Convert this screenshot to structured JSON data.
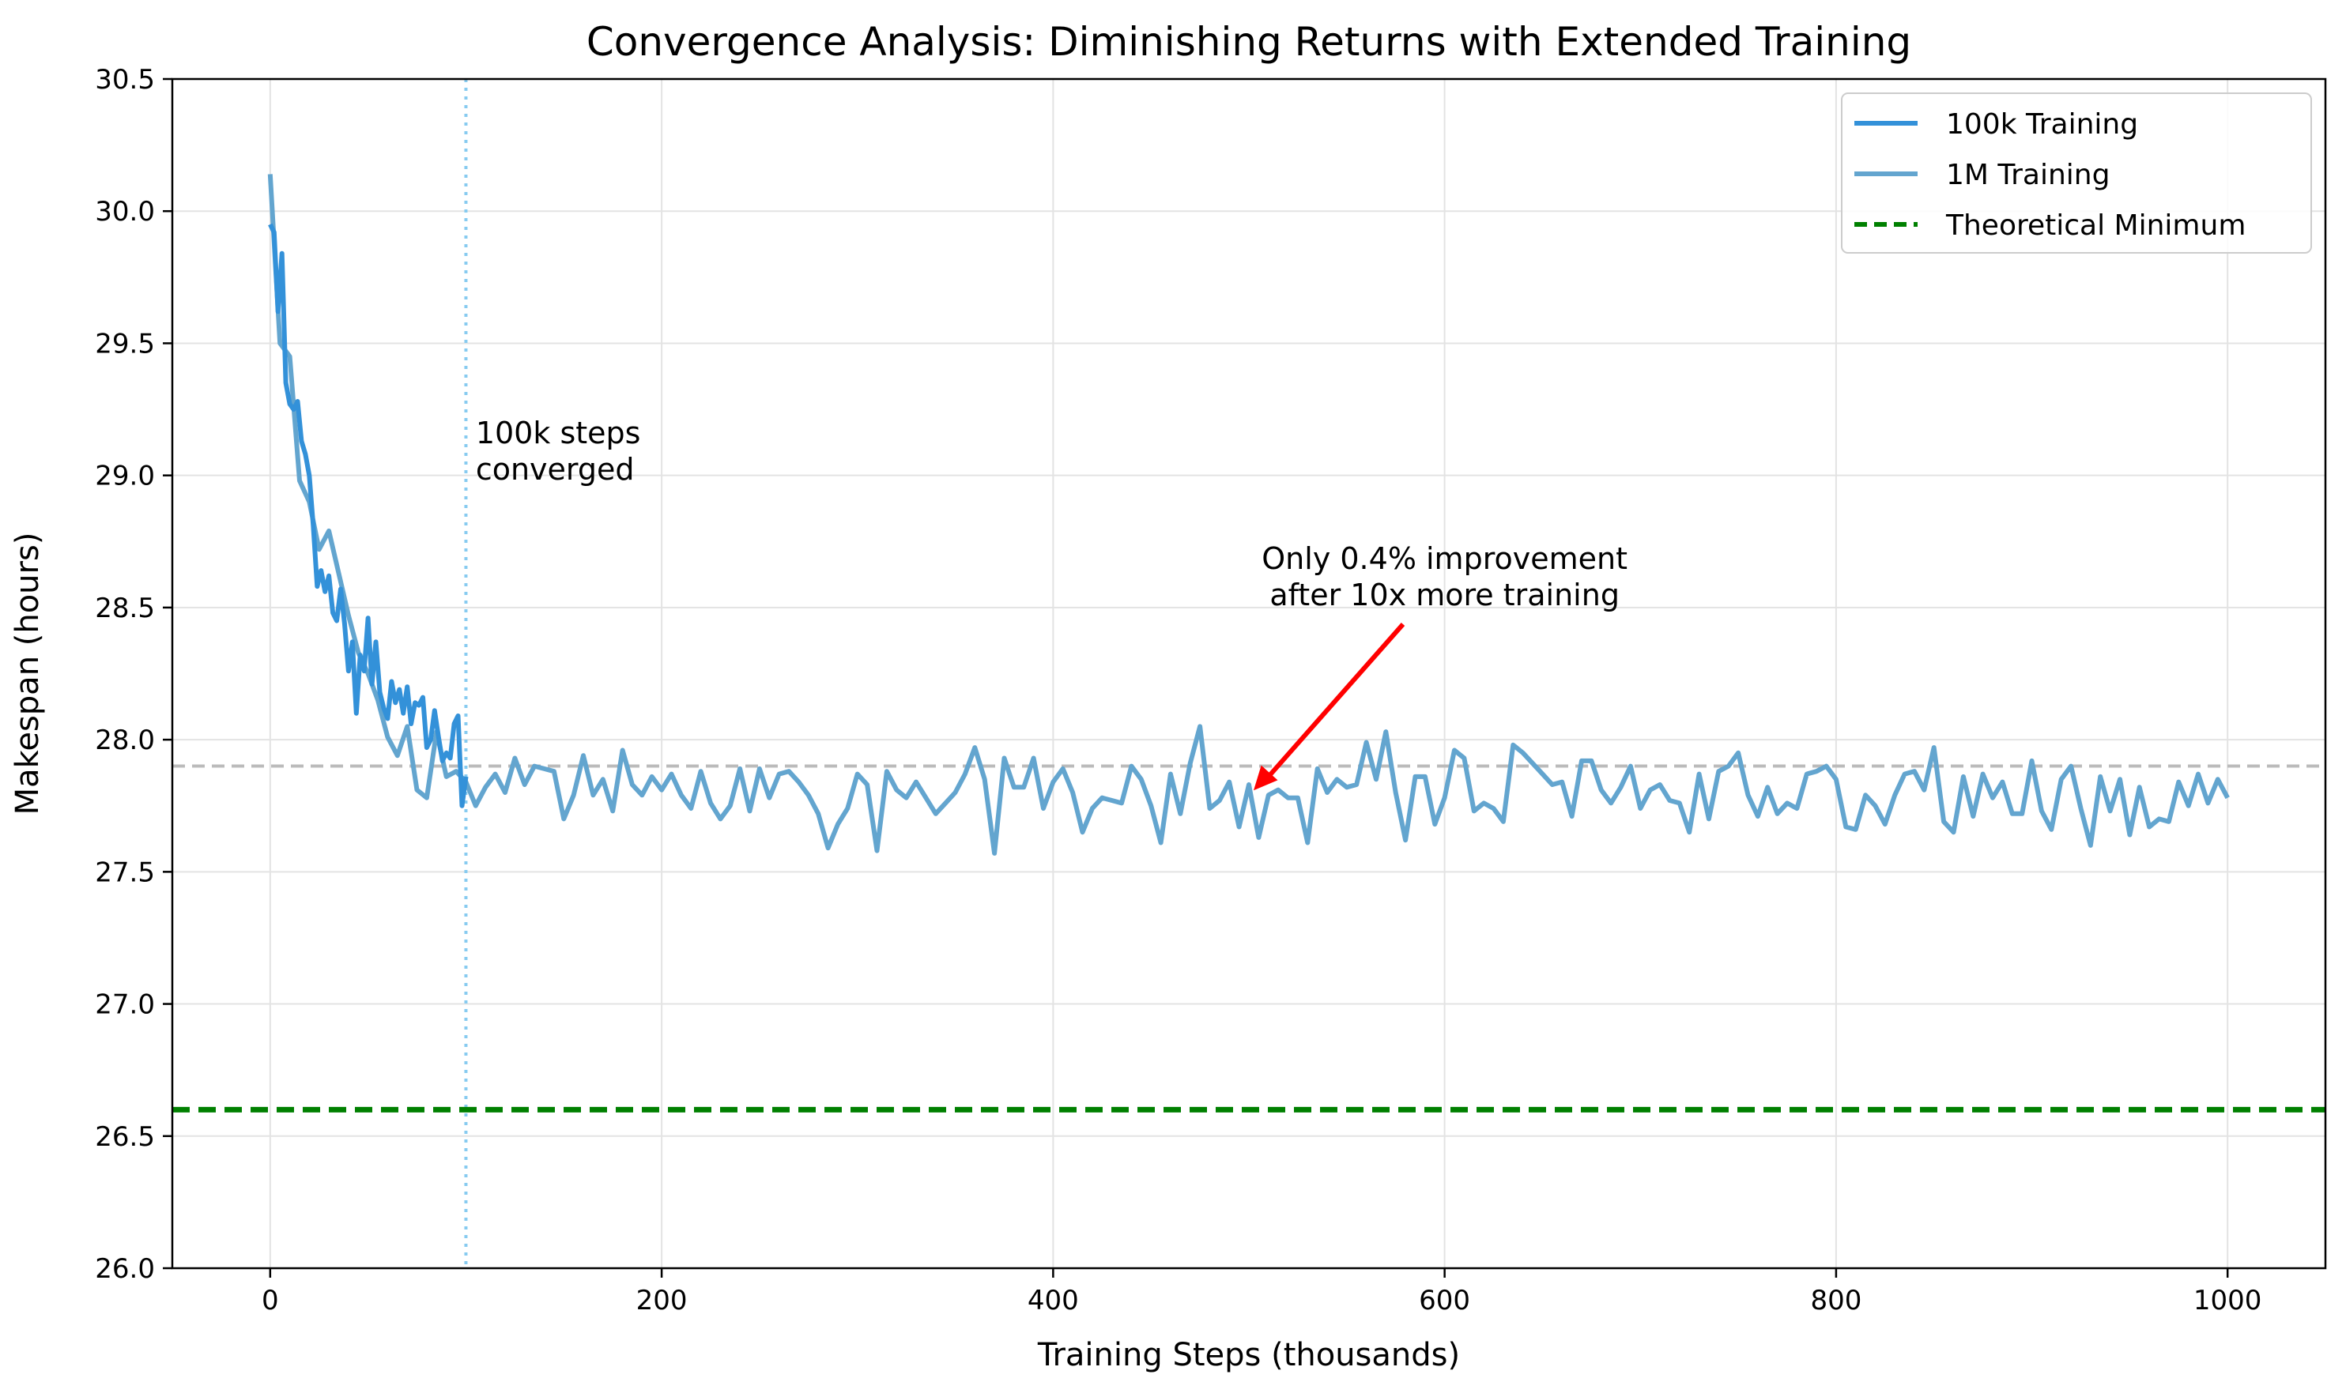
{
  "chart_data": {
    "type": "line",
    "title": "Convergence Analysis: Diminishing Returns with Extended Training",
    "xlabel": "Training Steps (thousands)",
    "ylabel": "Makespan (hours)",
    "xlim": [
      -50,
      1050
    ],
    "ylim": [
      26.0,
      30.5
    ],
    "xticks": [
      0,
      200,
      400,
      600,
      800,
      1000
    ],
    "xtick_labels": [
      "0",
      "200",
      "400",
      "600",
      "800",
      "1000"
    ],
    "yticks": [
      26.0,
      26.5,
      27.0,
      27.5,
      28.0,
      28.5,
      29.0,
      29.5,
      30.0,
      30.5
    ],
    "ytick_labels": [
      "26.0",
      "26.5",
      "27.0",
      "27.5",
      "28.0",
      "28.5",
      "29.0",
      "29.5",
      "30.0",
      "30.5"
    ],
    "grid": true,
    "legend_position": "top-right",
    "colors": {
      "series_100k": "#3391d9",
      "series_1m": "#63a5cf",
      "theoretical_min": "#008000",
      "reference": "#bbbbbb",
      "vline": "#87cbf0",
      "arrow": "#ff0000"
    },
    "series": [
      {
        "name": "100k Training",
        "x": [
          0,
          2,
          4,
          6,
          8,
          10,
          12,
          14,
          16,
          18,
          20,
          22,
          24,
          26,
          28,
          30,
          32,
          34,
          36,
          38,
          40,
          42,
          44,
          46,
          48,
          50,
          52,
          54,
          56,
          58,
          60,
          62,
          64,
          66,
          68,
          70,
          72,
          74,
          76,
          78,
          80,
          82,
          84,
          86,
          88,
          90,
          92,
          94,
          96,
          98,
          100
        ],
        "values": [
          29.95,
          29.92,
          29.62,
          29.84,
          29.35,
          29.27,
          29.25,
          29.28,
          29.13,
          29.08,
          29.0,
          28.81,
          28.58,
          28.64,
          28.56,
          28.62,
          28.48,
          28.45,
          28.57,
          28.44,
          28.26,
          28.37,
          28.1,
          28.32,
          28.26,
          28.46,
          28.21,
          28.37,
          28.18,
          28.12,
          28.08,
          28.22,
          28.14,
          28.19,
          28.1,
          28.2,
          28.06,
          28.14,
          28.13,
          28.16,
          27.97,
          28.0,
          28.11,
          28.01,
          27.92,
          27.95,
          27.93,
          28.06,
          28.09,
          27.75,
          27.86
        ]
      },
      {
        "name": "1M Training",
        "x": [
          0,
          5,
          10,
          15,
          20,
          25,
          30,
          35,
          40,
          45,
          50,
          55,
          60,
          65,
          70,
          75,
          80,
          85,
          90,
          95,
          100,
          105,
          110,
          115,
          120,
          125,
          130,
          135,
          140,
          145,
          150,
          155,
          160,
          165,
          170,
          175,
          180,
          185,
          190,
          195,
          200,
          205,
          210,
          215,
          220,
          225,
          230,
          235,
          240,
          245,
          250,
          255,
          260,
          265,
          270,
          275,
          280,
          285,
          290,
          295,
          300,
          305,
          310,
          315,
          320,
          325,
          330,
          335,
          340,
          345,
          350,
          355,
          360,
          365,
          370,
          375,
          380,
          385,
          390,
          395,
          400,
          405,
          410,
          415,
          420,
          425,
          430,
          435,
          440,
          445,
          450,
          455,
          460,
          465,
          470,
          475,
          480,
          485,
          490,
          495,
          500,
          505,
          510,
          515,
          520,
          525,
          530,
          535,
          540,
          545,
          550,
          555,
          560,
          565,
          570,
          575,
          580,
          585,
          590,
          595,
          600,
          605,
          610,
          615,
          620,
          625,
          630,
          635,
          640,
          645,
          650,
          655,
          660,
          665,
          670,
          675,
          680,
          685,
          690,
          695,
          700,
          705,
          710,
          715,
          720,
          725,
          730,
          735,
          740,
          745,
          750,
          755,
          760,
          765,
          770,
          775,
          780,
          785,
          790,
          795,
          800,
          805,
          810,
          815,
          820,
          825,
          830,
          835,
          840,
          845,
          850,
          855,
          860,
          865,
          870,
          875,
          880,
          885,
          890,
          895,
          900,
          905,
          910,
          915,
          920,
          925,
          930,
          935,
          940,
          945,
          950,
          955,
          960,
          965,
          970,
          975,
          980,
          985,
          990,
          995,
          1000
        ],
        "values": [
          30.14,
          29.5,
          29.45,
          28.98,
          28.9,
          28.72,
          28.79,
          28.63,
          28.47,
          28.33,
          28.25,
          28.15,
          28.01,
          27.94,
          28.05,
          27.81,
          27.78,
          28.03,
          27.86,
          27.88,
          27.84,
          27.75,
          27.82,
          27.87,
          27.8,
          27.93,
          27.83,
          27.9,
          27.89,
          27.88,
          27.7,
          27.79,
          27.94,
          27.79,
          27.85,
          27.73,
          27.96,
          27.83,
          27.79,
          27.86,
          27.81,
          27.87,
          27.79,
          27.74,
          27.88,
          27.76,
          27.7,
          27.75,
          27.89,
          27.73,
          27.89,
          27.78,
          27.87,
          27.88,
          27.84,
          27.79,
          27.72,
          27.59,
          27.68,
          27.74,
          27.87,
          27.83,
          27.58,
          27.88,
          27.81,
          27.78,
          27.84,
          27.78,
          27.72,
          27.76,
          27.8,
          27.87,
          27.97,
          27.85,
          27.57,
          27.93,
          27.82,
          27.82,
          27.93,
          27.74,
          27.84,
          27.89,
          27.8,
          27.65,
          27.74,
          27.78,
          27.77,
          27.76,
          27.9,
          27.85,
          27.75,
          27.61,
          27.87,
          27.72,
          27.91,
          28.05,
          27.74,
          27.77,
          27.84,
          27.67,
          27.83,
          27.63,
          27.79,
          27.81,
          27.78,
          27.78,
          27.61,
          27.89,
          27.8,
          27.85,
          27.82,
          27.83,
          27.99,
          27.85,
          28.03,
          27.8,
          27.62,
          27.86,
          27.86,
          27.68,
          27.78,
          27.96,
          27.93,
          27.73,
          27.76,
          27.74,
          27.69,
          27.98,
          27.95,
          27.91,
          27.87,
          27.83,
          27.84,
          27.71,
          27.92,
          27.92,
          27.81,
          27.76,
          27.82,
          27.9,
          27.74,
          27.81,
          27.83,
          27.77,
          27.76,
          27.65,
          27.87,
          27.7,
          27.88,
          27.9,
          27.95,
          27.79,
          27.71,
          27.82,
          27.72,
          27.76,
          27.74,
          27.87,
          27.88,
          27.9,
          27.85,
          27.67,
          27.66,
          27.79,
          27.75,
          27.68,
          27.79,
          27.87,
          27.88,
          27.81,
          27.97,
          27.69,
          27.65,
          27.86,
          27.71,
          27.87,
          27.78,
          27.84,
          27.72,
          27.72,
          27.92,
          27.73,
          27.66,
          27.85,
          27.9,
          27.74,
          27.6,
          27.86,
          27.73,
          27.85,
          27.64,
          27.82,
          27.67,
          27.7,
          27.69,
          27.84,
          27.75,
          27.87,
          27.76,
          27.85,
          27.78
        ]
      }
    ],
    "theoretical_minimum": {
      "name": "Theoretical Minimum",
      "value": 26.6
    },
    "reference_line": {
      "value": 27.9
    },
    "vertical_marker": {
      "x": 100
    },
    "annotations": [
      {
        "lines": [
          "100k steps",
          "converged"
        ],
        "x": 105,
        "y": 29.2
      },
      {
        "lines": [
          "Only 0.4% improvement",
          "after 10x more training"
        ],
        "x": 600,
        "y": 28.6,
        "arrow_to": [
          500,
          27.82
        ]
      }
    ]
  }
}
